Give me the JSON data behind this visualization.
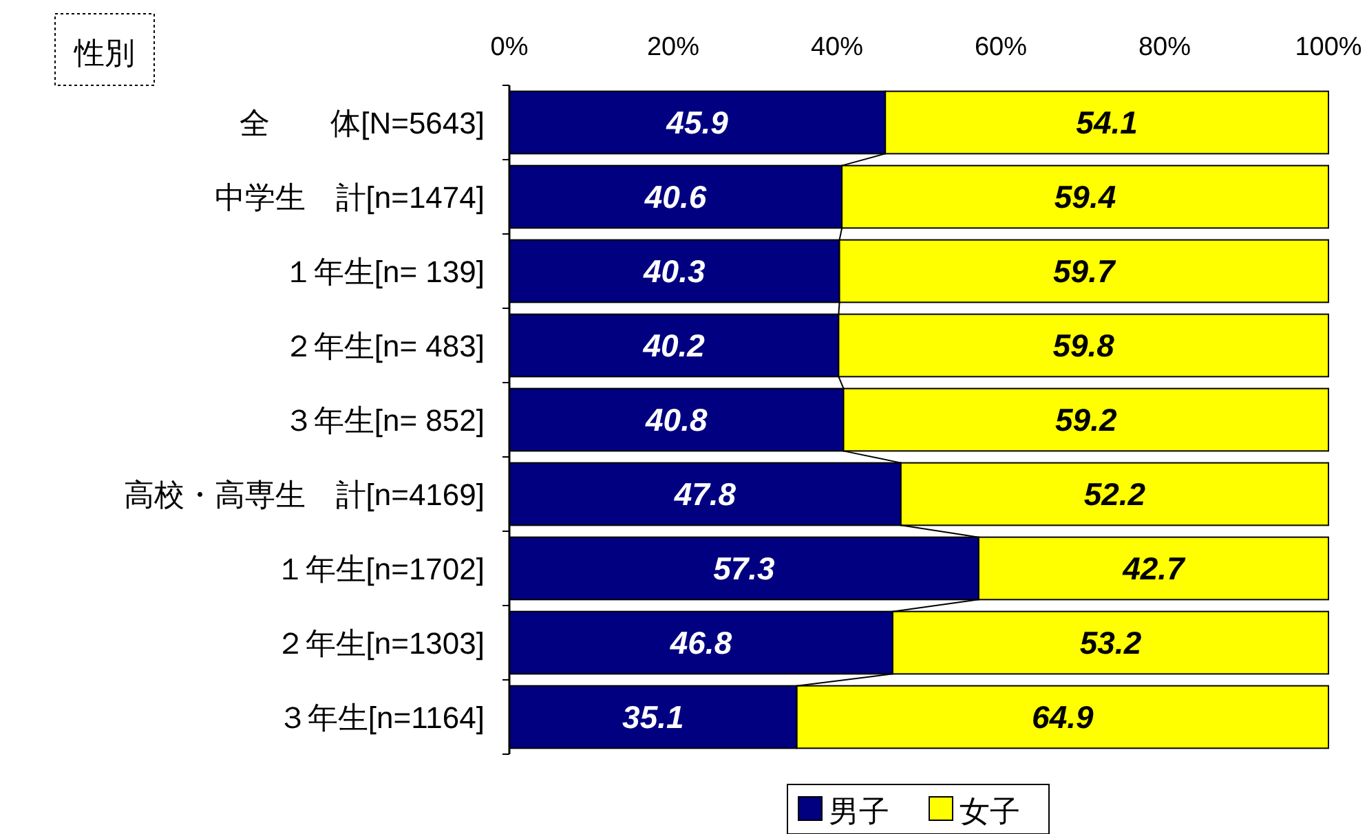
{
  "chart_data": {
    "type": "bar",
    "orientation": "horizontal",
    "stacked": true,
    "title": "性別",
    "categories": [
      "全　　体[N=5643]",
      "中学生　計[n=1474]",
      "１年生[n= 139]",
      "２年生[n= 483]",
      "３年生[n= 852]",
      "高校・高専生　計[n=4169]",
      "１年生[n=1702]",
      "２年生[n=1303]",
      "３年生[n=1164]"
    ],
    "series": [
      {
        "name": "男子",
        "color": "#000080",
        "values": [
          45.9,
          40.6,
          40.3,
          40.2,
          40.8,
          47.8,
          57.3,
          46.8,
          35.1
        ]
      },
      {
        "name": "女子",
        "color": "#ffff00",
        "values": [
          54.1,
          59.4,
          59.7,
          59.8,
          59.2,
          52.2,
          42.7,
          53.2,
          64.9
        ]
      }
    ],
    "xlim": [
      0,
      100
    ],
    "xticks": [
      {
        "value": 0,
        "label": "0%"
      },
      {
        "value": 20,
        "label": "20%"
      },
      {
        "value": 40,
        "label": "40%"
      },
      {
        "value": 60,
        "label": "60%"
      },
      {
        "value": 80,
        "label": "80%"
      },
      {
        "value": 100,
        "label": "100%"
      }
    ],
    "data_labels": true,
    "legend": "bottom"
  }
}
